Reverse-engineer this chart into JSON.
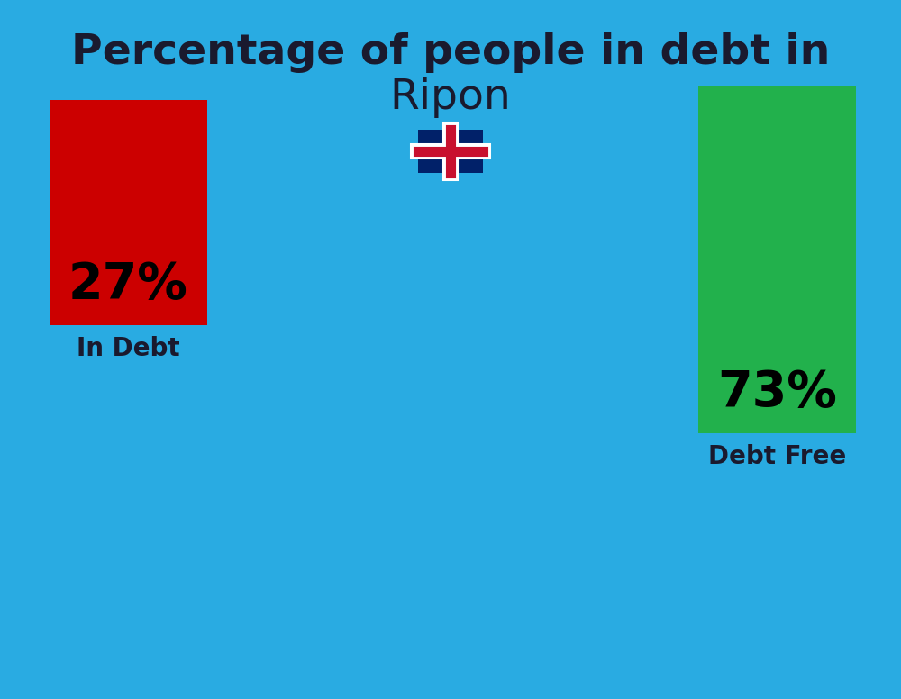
{
  "title_line1": "Percentage of people in debt in",
  "title_line2": "Ripon",
  "background_color": "#29ABE2",
  "bar1_value": 27,
  "bar1_label": "27%",
  "bar1_caption": "In Debt",
  "bar1_color": "#CC0000",
  "bar2_value": 73,
  "bar2_label": "73%",
  "bar2_caption": "Debt Free",
  "bar2_color": "#22B14C",
  "title_color": "#1a1a2e",
  "label_color": "#000000",
  "caption_color": "#1a1a2e",
  "title_fontsize": 34,
  "city_fontsize": 34,
  "bar_label_fontsize": 40,
  "caption_fontsize": 20
}
